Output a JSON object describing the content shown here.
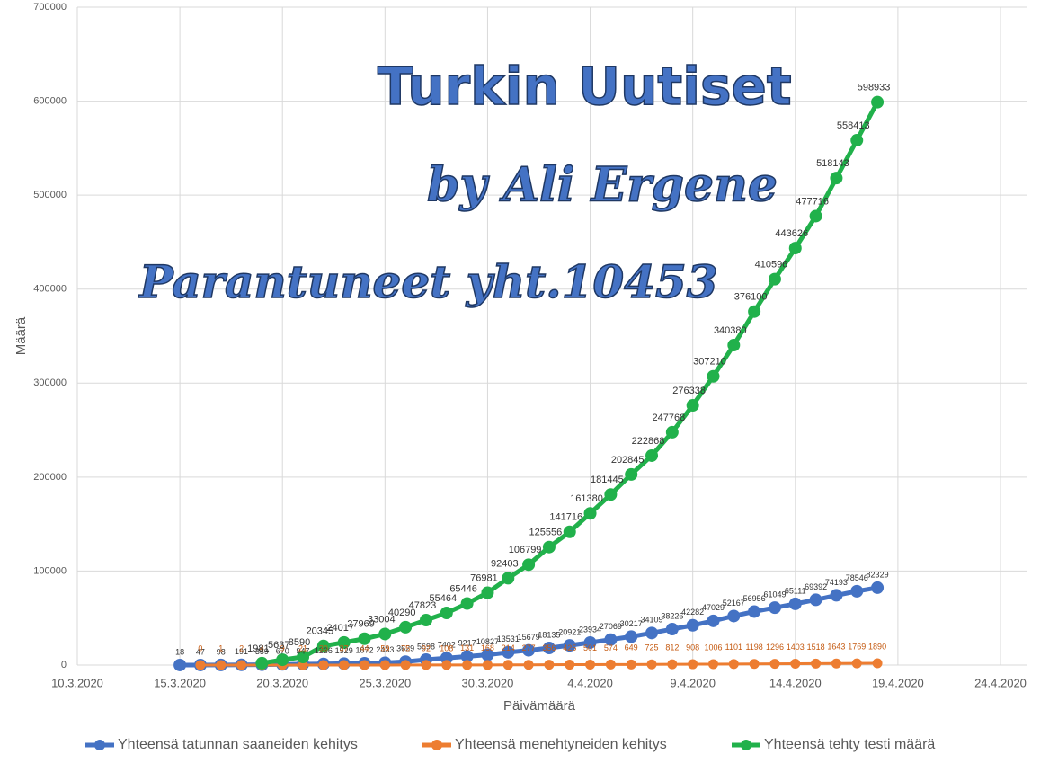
{
  "chart_data": {
    "type": "line",
    "annotations": [
      "Turkin Uutiset",
      "by Ali Ergene",
      "Parantuneet yht.10453"
    ],
    "x_label": "Päivämäärä",
    "y_label": "Määrä",
    "x": [
      "15.3.2020",
      "16.3.2020",
      "17.3.2020",
      "18.3.2020",
      "19.3.2020",
      "20.3.2020",
      "21.3.2020",
      "22.3.2020",
      "23.3.2020",
      "24.3.2020",
      "25.3.2020",
      "26.3.2020",
      "27.3.2020",
      "28.3.2020",
      "29.3.2020",
      "30.3.2020",
      "31.3.2020",
      "1.4.2020",
      "2.4.2020",
      "3.4.2020",
      "4.4.2020",
      "5.4.2020",
      "6.4.2020",
      "7.4.2020",
      "8.4.2020",
      "9.4.2020",
      "10.4.2020",
      "11.4.2020",
      "12.4.2020",
      "13.4.2020",
      "14.4.2020",
      "15.4.2020",
      "16.4.2020",
      "17.4.2020",
      "18.4.2020"
    ],
    "series": [
      {
        "name": "Yhteensä tatunnan saaneiden kehitys",
        "color": "#4472c4",
        "label_color": "#333333",
        "values": [
          18,
          47,
          98,
          191,
          359,
          670,
          947,
          1236,
          1529,
          1872,
          2433,
          3629,
          5698,
          7402,
          9217,
          10827,
          13531,
          15679,
          18135,
          20921,
          23934,
          27069,
          30217,
          34109,
          38226,
          42282,
          47029,
          52167,
          56956,
          61049,
          65111,
          69392,
          74193,
          78546,
          82329
        ]
      },
      {
        "name": "Yhteensä menehtyneiden kehitys",
        "color": "#ed7d31",
        "label_color": "#c55a11",
        "values": [
          null,
          0,
          1,
          2,
          4,
          9,
          21,
          30,
          37,
          44,
          59,
          75,
          92,
          108,
          131,
          168,
          214,
          277,
          356,
          425,
          501,
          574,
          649,
          725,
          812,
          908,
          1006,
          1101,
          1198,
          1296,
          1403,
          1518,
          1643,
          1769,
          1890
        ]
      },
      {
        "name": "Yhteensä tehty testi määrä",
        "color": "#21b14b",
        "label_color": "#333333",
        "values": [
          null,
          null,
          null,
          null,
          1981,
          5637,
          8590,
          20345,
          24017,
          27969,
          33004,
          40290,
          47823,
          55464,
          65446,
          76981,
          92403,
          106799,
          125556,
          141716,
          161380,
          181445,
          202845,
          222868,
          247768,
          276338,
          307210,
          340380,
          376100,
          410596,
          443626,
          477716,
          518143,
          558413,
          598933
        ]
      }
    ],
    "xlim": [
      "10.3.2020",
      "24.4.2020"
    ],
    "xticks": [
      "10.3.2020",
      "15.3.2020",
      "20.3.2020",
      "25.3.2020",
      "30.3.2020",
      "4.4.2020",
      "9.4.2020",
      "14.4.2020",
      "19.4.2020",
      "24.4.2020"
    ],
    "ylim": [
      0,
      700000
    ],
    "yticks": [
      0,
      100000,
      200000,
      300000,
      400000,
      500000,
      600000,
      700000
    ],
    "grid": true
  }
}
